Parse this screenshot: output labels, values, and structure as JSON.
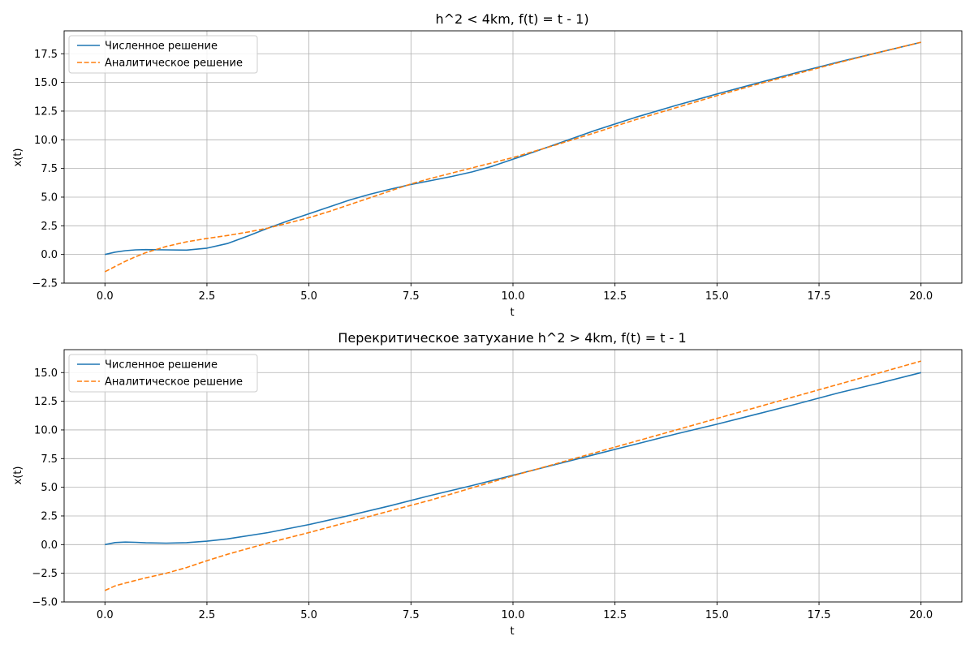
{
  "chart_data": [
    {
      "type": "line",
      "title": "h^2 < 4km, f(t) = t - 1)",
      "xlabel": "t",
      "ylabel": "x(t)",
      "xlim": [
        -1.0,
        21.0
      ],
      "ylim": [
        -2.5,
        19.5
      ],
      "xticks": [
        0.0,
        2.5,
        5.0,
        7.5,
        10.0,
        12.5,
        15.0,
        17.5,
        20.0
      ],
      "xtick_labels": [
        "0.0",
        "2.5",
        "5.0",
        "7.5",
        "10.0",
        "12.5",
        "15.0",
        "17.5",
        "20.0"
      ],
      "yticks": [
        -2.5,
        0.0,
        2.5,
        5.0,
        7.5,
        10.0,
        12.5,
        15.0,
        17.5
      ],
      "ytick_labels": [
        "−2.5",
        "0.0",
        "2.5",
        "5.0",
        "7.5",
        "10.0",
        "12.5",
        "15.0",
        "17.5"
      ],
      "grid": true,
      "legend_position": "upper-left",
      "series": [
        {
          "name": "Численное решение",
          "color": "#1f77b4",
          "dash": "solid",
          "x": [
            0,
            0.25,
            0.5,
            0.75,
            1.0,
            1.5,
            2.0,
            2.5,
            3.0,
            3.5,
            4.0,
            4.5,
            5.0,
            5.5,
            6.0,
            6.5,
            7.0,
            7.5,
            8.0,
            8.5,
            9.0,
            9.5,
            10.0,
            11.0,
            12.0,
            13.0,
            14.0,
            15.0,
            16.0,
            17.0,
            18.0,
            19.0,
            20.0
          ],
          "y": [
            0.0,
            0.2,
            0.33,
            0.4,
            0.42,
            0.4,
            0.38,
            0.55,
            0.95,
            1.6,
            2.3,
            2.95,
            3.55,
            4.15,
            4.75,
            5.25,
            5.7,
            6.1,
            6.45,
            6.8,
            7.2,
            7.7,
            8.3,
            9.55,
            10.8,
            11.95,
            13.0,
            14.0,
            14.95,
            15.9,
            16.8,
            17.65,
            18.5
          ]
        },
        {
          "name": "Аналитическое решение",
          "color": "#ff7f0e",
          "dash": "dashed",
          "x": [
            0,
            0.25,
            0.5,
            0.75,
            1.0,
            1.5,
            2.0,
            2.5,
            3.0,
            3.5,
            4.0,
            4.5,
            5.0,
            5.5,
            6.0,
            6.5,
            7.0,
            7.5,
            8.0,
            8.5,
            9.0,
            9.5,
            10.0,
            11.0,
            12.0,
            13.0,
            14.0,
            15.0,
            16.0,
            17.0,
            18.0,
            19.0,
            20.0
          ],
          "y": [
            -1.5,
            -1.05,
            -0.6,
            -0.2,
            0.15,
            0.7,
            1.1,
            1.4,
            1.65,
            1.95,
            2.3,
            2.75,
            3.2,
            3.75,
            4.35,
            4.95,
            5.55,
            6.15,
            6.65,
            7.1,
            7.55,
            8.0,
            8.45,
            9.5,
            10.6,
            11.75,
            12.8,
            13.85,
            14.85,
            15.8,
            16.75,
            17.65,
            18.5
          ]
        }
      ]
    },
    {
      "type": "line",
      "title": "Перекритическое затухание h^2 > 4km, f(t) = t - 1",
      "xlabel": "t",
      "ylabel": "x(t)",
      "xlim": [
        -1.0,
        21.0
      ],
      "ylim": [
        -5.0,
        17.0
      ],
      "xticks": [
        0.0,
        2.5,
        5.0,
        7.5,
        10.0,
        12.5,
        15.0,
        17.5,
        20.0
      ],
      "xtick_labels": [
        "0.0",
        "2.5",
        "5.0",
        "7.5",
        "10.0",
        "12.5",
        "15.0",
        "17.5",
        "20.0"
      ],
      "yticks": [
        -5.0,
        -2.5,
        0.0,
        2.5,
        5.0,
        7.5,
        10.0,
        12.5,
        15.0
      ],
      "ytick_labels": [
        "−5.0",
        "−2.5",
        "0.0",
        "2.5",
        "5.0",
        "7.5",
        "10.0",
        "12.5",
        "15.0"
      ],
      "grid": true,
      "legend_position": "upper-left",
      "series": [
        {
          "name": "Численное решение",
          "color": "#1f77b4",
          "dash": "solid",
          "x": [
            0,
            0.25,
            0.5,
            0.75,
            1.0,
            1.5,
            2.0,
            2.5,
            3.0,
            4.0,
            5.0,
            6.0,
            7.0,
            8.0,
            9.0,
            10.0,
            11.0,
            12.0,
            13.0,
            14.0,
            15.0,
            16.0,
            17.0,
            18.0,
            19.0,
            20.0
          ],
          "y": [
            0.0,
            0.18,
            0.22,
            0.2,
            0.16,
            0.13,
            0.17,
            0.3,
            0.5,
            1.05,
            1.75,
            2.55,
            3.4,
            4.3,
            5.15,
            6.05,
            6.95,
            7.85,
            8.75,
            9.65,
            10.5,
            11.4,
            12.3,
            13.25,
            14.1,
            15.0
          ]
        },
        {
          "name": "Аналитическое решение",
          "color": "#ff7f0e",
          "dash": "dashed",
          "x": [
            0,
            0.25,
            0.5,
            1.0,
            1.5,
            2.0,
            2.5,
            3.0,
            4.0,
            5.0,
            6.0,
            7.0,
            8.0,
            9.0,
            10.0,
            11.0,
            12.0,
            13.0,
            14.0,
            15.0,
            16.0,
            17.0,
            18.0,
            19.0,
            20.0
          ],
          "y": [
            -4.0,
            -3.6,
            -3.35,
            -2.9,
            -2.5,
            -2.0,
            -1.4,
            -0.85,
            0.15,
            1.05,
            2.0,
            2.95,
            3.9,
            4.95,
            6.0,
            7.0,
            8.0,
            9.0,
            10.0,
            11.0,
            12.0,
            13.0,
            14.0,
            15.0,
            16.0
          ]
        }
      ]
    }
  ]
}
